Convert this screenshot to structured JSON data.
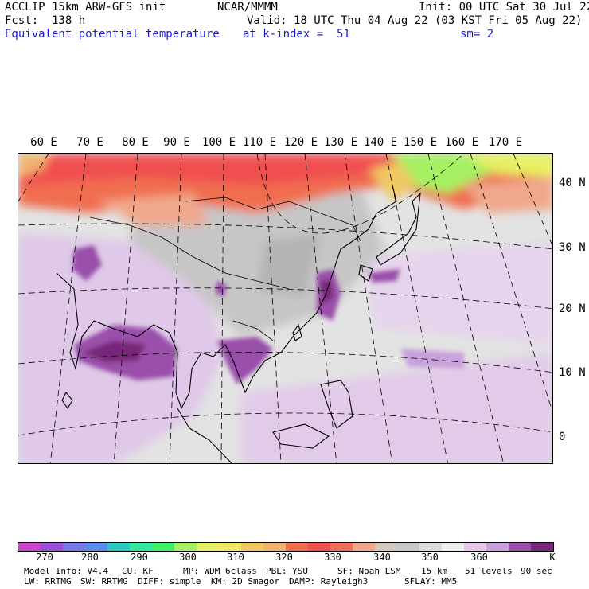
{
  "header": {
    "title": "ACCLIP 15km ARW-GFS init",
    "source": "NCAR/MMMM",
    "init": "Init: 00 UTC Sat 30 Jul 22",
    "fcst": "Fcst:  138 h",
    "valid": "Valid: 18 UTC Thu 04 Aug 22 (03 KST Fri 05 Aug 22)",
    "field": "Equivalent potential temperature",
    "level": "at k-index =  51",
    "smooth": "sm= 2"
  },
  "map": {
    "lon_labels": [
      "60 E",
      "70 E",
      "80 E",
      "90 E",
      "100 E",
      "110 E",
      "120 E",
      "130 E",
      "140 E",
      "150 E",
      "160 E",
      "170 E"
    ],
    "lat_labels": [
      "40 N",
      "30 N",
      "20 N",
      "10 N",
      "0"
    ]
  },
  "colorbar": {
    "colors": [
      "#c846c8",
      "#9a50d6",
      "#7878e6",
      "#5a8cf0",
      "#2ec8c0",
      "#34e6a0",
      "#3cf068",
      "#a6f064",
      "#e6f064",
      "#f0e864",
      "#f0c864",
      "#f0b470",
      "#f06e50",
      "#f05050",
      "#f06e5a",
      "#f0a88c",
      "#d2c8be",
      "#c8c8c8",
      "#dcdcdc",
      "#f0f0f0",
      "#e6c8e6",
      "#c8a0dc",
      "#9a50aa",
      "#782878"
    ],
    "labels": [
      "270",
      "280",
      "290",
      "300",
      "310",
      "320",
      "330",
      "340",
      "350",
      "360"
    ],
    "unit": "K"
  },
  "footer": {
    "line1": [
      "Model Info: V4.4",
      "CU: KF",
      "MP: WDM 6class",
      "PBL: YSU",
      "SF: Noah LSM",
      "15 km",
      "51 levels",
      "90 sec"
    ],
    "line2": [
      "LW: RRTMG",
      "SW: RRTMG",
      "DIFF: simple",
      "KM: 2D Smagor",
      "DAMP: Rayleigh3",
      "SFLAY: MM5"
    ]
  }
}
